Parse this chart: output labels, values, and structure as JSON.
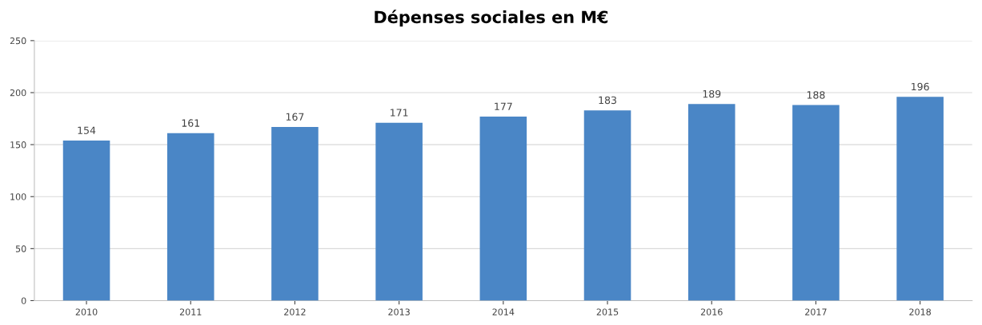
{
  "chart_data": {
    "type": "bar",
    "title": "Dépenses sociales en M€",
    "categories": [
      "2010",
      "2011",
      "2012",
      "2013",
      "2014",
      "2015",
      "2016",
      "2017",
      "2018"
    ],
    "values": [
      154,
      161,
      167,
      171,
      177,
      183,
      189,
      188,
      196
    ],
    "color": "#4a86c6",
    "ylim": [
      0,
      250
    ],
    "yticks": [
      0,
      50,
      100,
      150,
      200,
      250
    ],
    "grid": "y",
    "data_labels": true,
    "legend": false
  }
}
